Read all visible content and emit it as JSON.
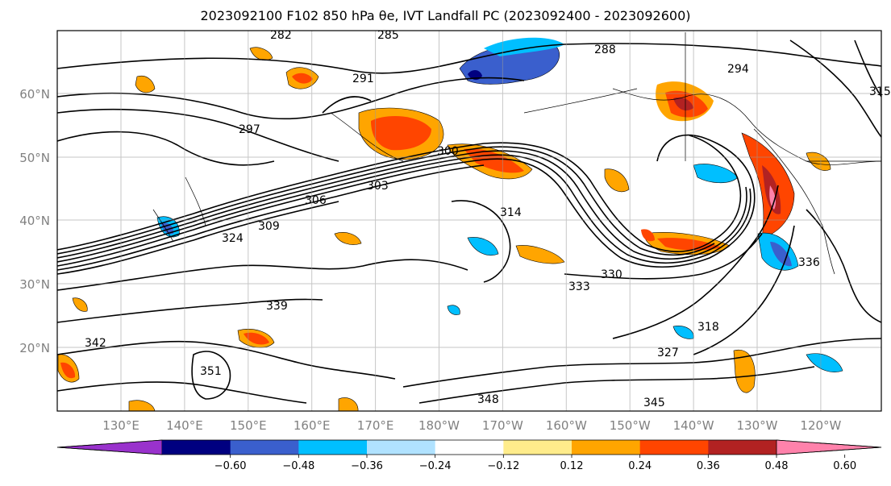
{
  "title": "2023092100 F102 850 hPa θe, IVT Landfall PC (2023092400 - 2023092600)",
  "map": {
    "lon_labels": [
      "130°E",
      "140°E",
      "150°E",
      "160°E",
      "170°E",
      "180°W",
      "170°W",
      "160°W",
      "150°W",
      "140°W",
      "130°W",
      "120°W"
    ],
    "lat_labels": [
      "20°N",
      "30°N",
      "40°N",
      "50°N",
      "60°N"
    ],
    "contour_labels": [
      "282",
      "285",
      "288",
      "294",
      "291",
      "297",
      "315",
      "300",
      "303",
      "306",
      "309",
      "314",
      "318",
      "324",
      "327",
      "330",
      "333",
      "336",
      "339",
      "342",
      "345",
      "348",
      "351"
    ]
  },
  "colorbar": {
    "colors": [
      "#9932cc",
      "#000080",
      "#3a5fcd",
      "#00bfff",
      "#b0e2ff",
      "#ffffff",
      "#ffec8b",
      "#ffa500",
      "#ff4500",
      "#b22222",
      "#ff82ab"
    ],
    "tick_labels": [
      "−0.60",
      "−0.48",
      "−0.36",
      "−0.24",
      "−0.12",
      "0.12",
      "0.24",
      "0.36",
      "0.48",
      "0.60"
    ]
  }
}
